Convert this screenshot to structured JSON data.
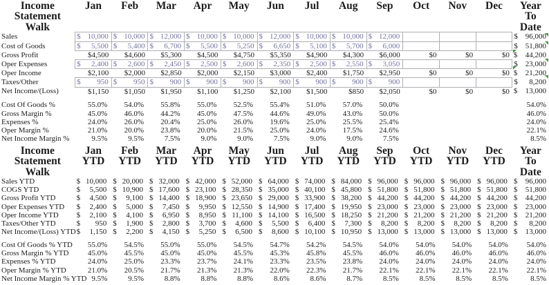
{
  "table1": {
    "title": "Income\nStatement\nWalk",
    "months": [
      "Jan",
      "Feb",
      "Mar",
      "Apr",
      "May",
      "Jun",
      "Jul",
      "Aug",
      "Sep",
      "Oct",
      "Nov",
      "Dec"
    ],
    "ytd_header": "Year\nTo\nDate",
    "rows": [
      {
        "label": "Sales",
        "type": "input",
        "cells": [
          "10,000",
          "10,000",
          "12,000",
          "10,000",
          "10,000",
          "12,000",
          "10,000",
          "10,000",
          "12,000",
          "",
          "",
          ""
        ],
        "ytd": "96,000"
      },
      {
        "label": "Cost of Goods",
        "type": "input",
        "cells": [
          "5,500",
          "5,400",
          "6,700",
          "5,500",
          "5,250",
          "6,650",
          "5,100",
          "5,700",
          "6,000",
          "",
          "",
          ""
        ],
        "ytd": "51,800"
      },
      {
        "label": "Gross Profit",
        "type": "calc",
        "cells": [
          "$4,500",
          "$4,600",
          "$5,300",
          "$4,500",
          "$4,750",
          "$5,350",
          "$4,900",
          "$4,300",
          "$6,000",
          "$0",
          "$0",
          "$0"
        ],
        "ytd": "44,200"
      },
      {
        "label": "Oper Expenses",
        "type": "input",
        "cells": [
          "2,400",
          "2,600",
          "2,450",
          "2,500",
          "2,600",
          "2,350",
          "2,500",
          "2,550",
          "3,050",
          "",
          "",
          ""
        ],
        "ytd": "23,000"
      },
      {
        "label": "Oper Income",
        "type": "calc",
        "cells": [
          "$2,100",
          "$2,000",
          "$2,850",
          "$2,000",
          "$2,150",
          "$3,000",
          "$2,400",
          "$1,750",
          "$2,950",
          "$0",
          "$0",
          "$0"
        ],
        "ytd": "21,200"
      },
      {
        "label": "Taxes/Other",
        "type": "input",
        "cells": [
          "950",
          "950",
          "900",
          "900",
          "900",
          "900",
          "900",
          "900",
          "900",
          "",
          "",
          ""
        ],
        "ytd": "8,200"
      },
      {
        "label": "Net Income/(Loss)",
        "type": "calc",
        "cells": [
          "$1,150",
          "$1,050",
          "$1,950",
          "$1,100",
          "$1,250",
          "$2,100",
          "$1,500",
          "$850",
          "$2,050",
          "$0",
          "$0",
          "$0"
        ],
        "ytd": "13,000"
      }
    ],
    "pct_rows": [
      {
        "label": "Cost Of Goods %",
        "cells": [
          "55.0%",
          "54.0%",
          "55.8%",
          "55.0%",
          "52.5%",
          "55.4%",
          "51.0%",
          "57.0%",
          "50.0%",
          "",
          "",
          ""
        ],
        "ytd": "54.0%"
      },
      {
        "label": "Gross Margin %",
        "cells": [
          "45.0%",
          "46.0%",
          "44.2%",
          "45.0%",
          "47.5%",
          "44.6%",
          "49.0%",
          "43.0%",
          "50.0%",
          "",
          "",
          ""
        ],
        "ytd": "46.0%"
      },
      {
        "label": "Expenses %",
        "cells": [
          "24.0%",
          "26.0%",
          "20.4%",
          "25.0%",
          "26.0%",
          "19.6%",
          "25.0%",
          "25.5%",
          "25.4%",
          "",
          "",
          ""
        ],
        "ytd": "24.0%"
      },
      {
        "label": "Oper Margin %",
        "cells": [
          "21.0%",
          "20.0%",
          "23.8%",
          "20.0%",
          "21.5%",
          "25.0%",
          "24.0%",
          "17.5%",
          "24.6%",
          "",
          "",
          ""
        ],
        "ytd": "22.1%"
      },
      {
        "label": "Net Income Margin %",
        "cells": [
          "9.5%",
          "9.5%",
          "7.5%",
          "9.0%",
          "9.0%",
          "7.5%",
          "9.0%",
          "9.0%",
          "7.5%",
          "",
          "",
          ""
        ],
        "ytd": "8.5%"
      }
    ]
  },
  "table2": {
    "title": "Income\nStatement\nWalk",
    "months": [
      "Jan\nYTD",
      "Feb\nYTD",
      "Mar\nYTD",
      "Apr\nYTD",
      "May\nYTD",
      "Jun\nYTD",
      "Jul\nYTD",
      "Aug\nYTD",
      "Sep\nYTD",
      "Oct\nYTD",
      "Nov\nYTD",
      "Dec\nYTD"
    ],
    "ytd_header": "Year\nTo\nDate",
    "rows": [
      {
        "label": "Sales YTD",
        "type": "acct",
        "cells": [
          "10,000",
          "20,000",
          "32,000",
          "42,000",
          "52,000",
          "64,000",
          "74,000",
          "84,000",
          "96,000",
          "96,000",
          "96,000",
          "96,000"
        ],
        "ytd": "96,000"
      },
      {
        "label": "COGS YTD",
        "type": "acct",
        "cells": [
          "5,500",
          "10,900",
          "17,600",
          "23,100",
          "28,350",
          "35,000",
          "40,100",
          "45,800",
          "51,800",
          "51,800",
          "51,800",
          "51,800"
        ],
        "ytd": "51,800"
      },
      {
        "label": "Gross Profit YTD",
        "type": "acct",
        "cells": [
          "4,500",
          "9,100",
          "14,400",
          "18,900",
          "23,650",
          "29,000",
          "33,900",
          "38,200",
          "44,200",
          "44,200",
          "44,200",
          "44,200"
        ],
        "ytd": "44,200"
      },
      {
        "label": "Oper Expenses YTD",
        "type": "acct",
        "cells": [
          "2,400",
          "5,000",
          "7,450",
          "9,950",
          "12,550",
          "14,900",
          "17,400",
          "19,950",
          "23,000",
          "23,000",
          "23,000",
          "23,000"
        ],
        "ytd": "23,000"
      },
      {
        "label": "Oper Income YTD",
        "type": "acct",
        "cells": [
          "2,100",
          "4,100",
          "6,950",
          "8,950",
          "11,100",
          "14,100",
          "16,500",
          "18,250",
          "21,200",
          "21,200",
          "21,200",
          "21,200"
        ],
        "ytd": "21,200"
      },
      {
        "label": "Taxes/Other YTD",
        "type": "acct",
        "cells": [
          "950",
          "1,900",
          "2,800",
          "3,700",
          "4,600",
          "5,500",
          "6,400",
          "7,300",
          "8,200",
          "8,200",
          "8,200",
          "8,200"
        ],
        "ytd": "8,200"
      },
      {
        "label": "Net Income/(Loss) YTD",
        "type": "acct",
        "cells": [
          "1,150",
          "2,200",
          "4,150",
          "5,250",
          "6,500",
          "8,600",
          "10,100",
          "10,950",
          "13,000",
          "13,000",
          "13,000",
          "13,000"
        ],
        "ytd": "13,000"
      }
    ],
    "pct_rows": [
      {
        "label": "Cost Of Goods % YTD",
        "cells": [
          "55.0%",
          "54.5%",
          "55.0%",
          "55.0%",
          "54.5%",
          "54.7%",
          "54.2%",
          "54.5%",
          "54.0%",
          "54.0%",
          "54.0%",
          "54.0%"
        ],
        "ytd": "54.0%"
      },
      {
        "label": "Gross Margin % YTD",
        "cells": [
          "45.0%",
          "45.5%",
          "45.0%",
          "45.0%",
          "45.5%",
          "45.3%",
          "45.8%",
          "45.5%",
          "46.0%",
          "46.0%",
          "46.0%",
          "46.0%"
        ],
        "ytd": "46.0%"
      },
      {
        "label": "Expenses % YTD",
        "cells": [
          "24.0%",
          "25.0%",
          "23.3%",
          "23.7%",
          "24.1%",
          "23.3%",
          "23.5%",
          "23.8%",
          "24.0%",
          "24.0%",
          "24.0%",
          "24.0%"
        ],
        "ytd": "24.0%"
      },
      {
        "label": "Oper Margin % YTD",
        "cells": [
          "21.0%",
          "20.5%",
          "21.7%",
          "21.3%",
          "21.3%",
          "22.0%",
          "22.3%",
          "21.7%",
          "22.1%",
          "22.1%",
          "22.1%",
          "22.1%"
        ],
        "ytd": "22.1%"
      },
      {
        "label": "Net Income Margin % YTD",
        "cells": [
          "9.5%",
          "9.5%",
          "8.8%",
          "8.8%",
          "8.8%",
          "8.6%",
          "8.6%",
          "8.7%",
          "8.5%",
          "8.5%",
          "8.5%",
          "8.5%"
        ],
        "ytd": "8.5%"
      }
    ]
  },
  "indicators": {
    "right_edge_rows": [
      0,
      1,
      3,
      5
    ],
    "ytd_corner_rows": [
      2,
      4
    ]
  },
  "colors": {
    "input_text": "#72729e",
    "grid_border": "#aeaeb4",
    "indicator_green": "#3a9c3a"
  }
}
